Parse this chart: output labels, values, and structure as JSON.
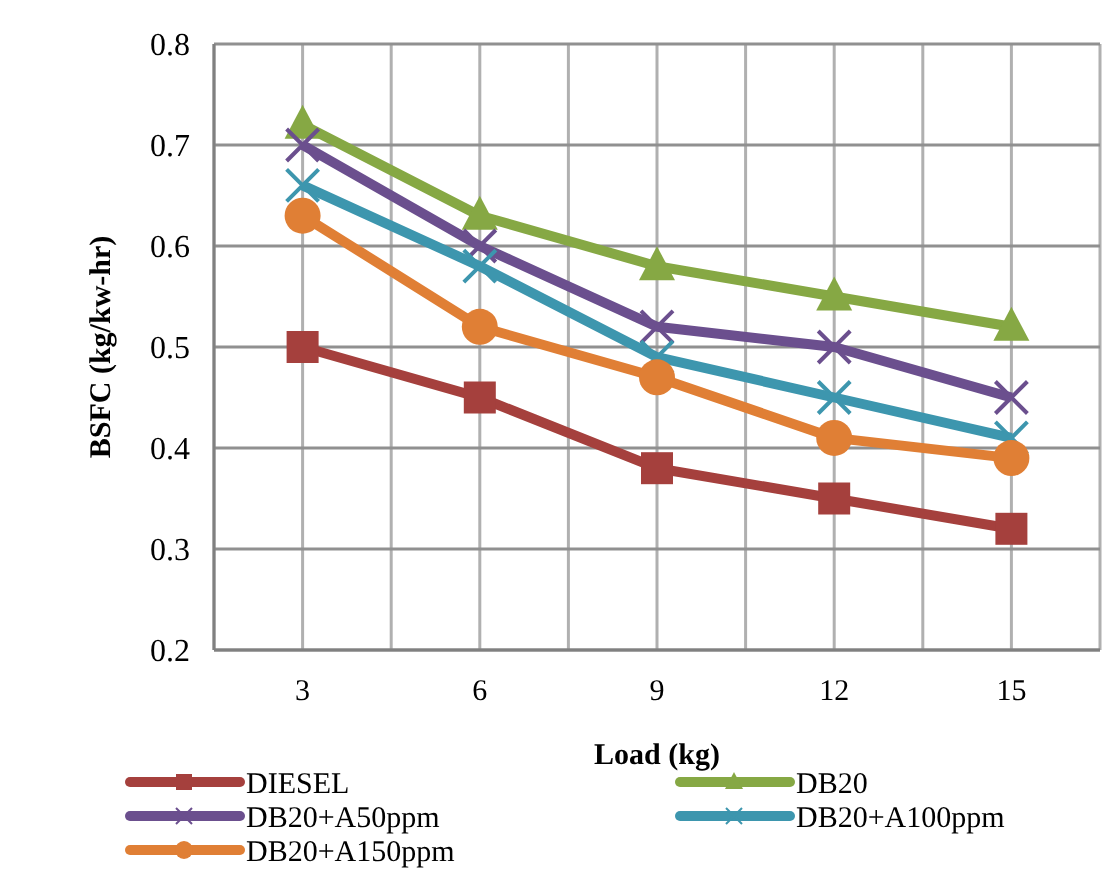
{
  "chart_data": {
    "type": "line",
    "xlabel": "Load (kg)",
    "ylabel": "BSFC (kg/kw-hr)",
    "categories": [
      "3",
      "6",
      "9",
      "12",
      "15"
    ],
    "ylim": [
      0.2,
      0.8
    ],
    "yticks": [
      {
        "value": 0.2,
        "label": "0.2"
      },
      {
        "value": 0.3,
        "label": "0.3"
      },
      {
        "value": 0.4,
        "label": "0.4"
      },
      {
        "value": 0.5,
        "label": "0.5"
      },
      {
        "value": 0.6,
        "label": "0.6"
      },
      {
        "value": 0.7,
        "label": "0.7"
      },
      {
        "value": 0.8,
        "label": "0.8"
      }
    ],
    "grid": true,
    "legend": "bottom",
    "line_style": "solid",
    "series": [
      {
        "name": "DIESEL",
        "color": "#a5403d",
        "marker": "square",
        "values": [
          0.5,
          0.45,
          0.38,
          0.35,
          0.32
        ]
      },
      {
        "name": "DB20",
        "color": "#86a844",
        "marker": "triangle",
        "values": [
          0.72,
          0.63,
          0.58,
          0.55,
          0.52
        ]
      },
      {
        "name": "DB20+A50ppm",
        "color": "#6b4f8e",
        "marker": "cross",
        "values": [
          0.7,
          0.6,
          0.52,
          0.5,
          0.45
        ]
      },
      {
        "name": "DB20+A100ppm",
        "color": "#3d96ae",
        "marker": "cross",
        "values": [
          0.66,
          0.58,
          0.49,
          0.45,
          0.41
        ]
      },
      {
        "name": "DB20+A150ppm",
        "color": "#e07f35",
        "marker": "circle",
        "values": [
          0.63,
          0.52,
          0.47,
          0.41,
          0.39
        ]
      }
    ]
  }
}
